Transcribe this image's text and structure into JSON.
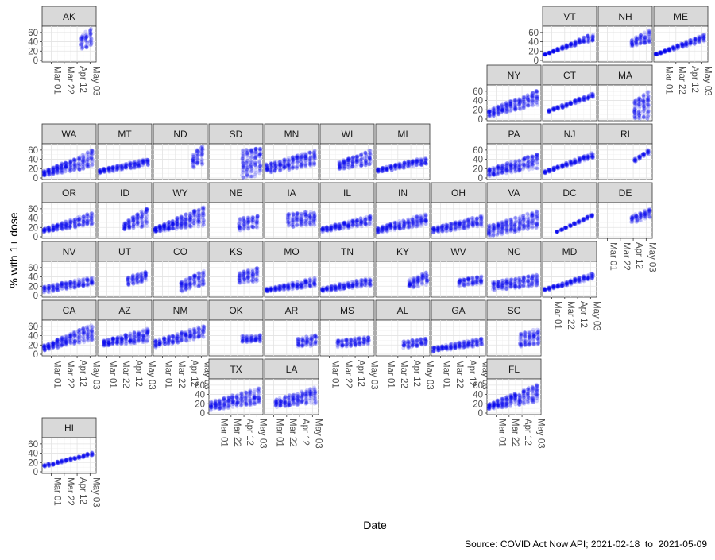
{
  "chart_data": {
    "type": "scatter",
    "layout": "geofacet-us-states",
    "xlabel": "Date",
    "ylabel": "% with 1+ dose",
    "caption": "Source: COVID Act Now API; 2021-02-18  to  2021-05-09",
    "x_range": [
      "2021-02-18",
      "2021-05-09"
    ],
    "y_range": [
      0,
      70
    ],
    "x_tick_labels": [
      "Mar 01",
      "Mar 22",
      "Apr 12",
      "May 03"
    ],
    "y_tick_labels": [
      "0",
      "20",
      "40",
      "60"
    ],
    "point_color": "#0000ee",
    "panel_background": "#ffffff",
    "strip_background": "#d9d9d9",
    "grid": true,
    "series": [
      {
        "state": "AK",
        "start": "2021-04-20",
        "low": [
          22,
          30
        ],
        "high": [
          55,
          68
        ]
      },
      {
        "state": "VT",
        "start": "2021-02-18",
        "low": [
          12,
          42
        ],
        "high": [
          13,
          58
        ]
      },
      {
        "state": "NH",
        "start": "2021-04-10",
        "low": [
          28,
          38
        ],
        "high": [
          45,
          65
        ]
      },
      {
        "state": "ME",
        "start": "2021-02-18",
        "low": [
          12,
          40
        ],
        "high": [
          14,
          56
        ]
      },
      {
        "state": "NY",
        "start": "2021-02-18",
        "low": [
          4,
          30
        ],
        "high": [
          20,
          62
        ]
      },
      {
        "state": "CT",
        "start": "2021-02-25",
        "low": [
          15,
          45
        ],
        "high": [
          20,
          55
        ]
      },
      {
        "state": "MA",
        "start": "2021-04-15",
        "low": [
          0,
          0
        ],
        "high": [
          40,
          60
        ]
      },
      {
        "state": "WA",
        "start": "2021-02-18",
        "low": [
          4,
          22
        ],
        "high": [
          15,
          60
        ]
      },
      {
        "state": "MT",
        "start": "2021-02-18",
        "low": [
          10,
          25
        ],
        "high": [
          18,
          42
        ]
      },
      {
        "state": "ND",
        "start": "2021-04-20",
        "low": [
          22,
          28
        ],
        "high": [
          55,
          68
        ]
      },
      {
        "state": "SD",
        "start": "2021-04-10",
        "low": [
          0,
          2
        ],
        "high": [
          60,
          65
        ]
      },
      {
        "state": "MN",
        "start": "2021-02-18",
        "low": [
          10,
          25
        ],
        "high": [
          30,
          60
        ]
      },
      {
        "state": "WI",
        "start": "2021-03-18",
        "low": [
          18,
          28
        ],
        "high": [
          35,
          60
        ]
      },
      {
        "state": "MI",
        "start": "2021-02-18",
        "low": [
          12,
          28
        ],
        "high": [
          20,
          45
        ]
      },
      {
        "state": "PA",
        "start": "2021-02-18",
        "low": [
          4,
          20
        ],
        "high": [
          20,
          52
        ]
      },
      {
        "state": "NJ",
        "start": "2021-02-18",
        "low": [
          10,
          42
        ],
        "high": [
          15,
          55
        ]
      },
      {
        "state": "RI",
        "start": "2021-04-15",
        "low": [
          35,
          50
        ],
        "high": [
          42,
          60
        ]
      },
      {
        "state": "OR",
        "start": "2021-02-18",
        "low": [
          10,
          25
        ],
        "high": [
          18,
          52
        ]
      },
      {
        "state": "ID",
        "start": "2021-03-30",
        "low": [
          15,
          22
        ],
        "high": [
          30,
          62
        ]
      },
      {
        "state": "WY",
        "start": "2021-02-18",
        "low": [
          10,
          22
        ],
        "high": [
          20,
          65
        ]
      },
      {
        "state": "NE",
        "start": "2021-04-05",
        "low": [
          12,
          18
        ],
        "high": [
          40,
          45
        ]
      },
      {
        "state": "IA",
        "start": "2021-03-25",
        "low": [
          20,
          25
        ],
        "high": [
          50,
          55
        ]
      },
      {
        "state": "IL",
        "start": "2021-02-18",
        "low": [
          10,
          25
        ],
        "high": [
          20,
          45
        ]
      },
      {
        "state": "IN",
        "start": "2021-02-18",
        "low": [
          8,
          25
        ],
        "high": [
          20,
          50
        ]
      },
      {
        "state": "OH",
        "start": "2021-02-18",
        "low": [
          8,
          22
        ],
        "high": [
          20,
          45
        ]
      },
      {
        "state": "VA",
        "start": "2021-02-18",
        "low": [
          0,
          18
        ],
        "high": [
          25,
          55
        ]
      },
      {
        "state": "DC",
        "start": "2021-03-10",
        "low": [
          10,
          42
        ],
        "high": [
          12,
          48
        ]
      },
      {
        "state": "DE",
        "start": "2021-04-10",
        "low": [
          28,
          40
        ],
        "high": [
          45,
          60
        ]
      },
      {
        "state": "NV",
        "start": "2021-02-18",
        "low": [
          5,
          22
        ],
        "high": [
          20,
          40
        ]
      },
      {
        "state": "UT",
        "start": "2021-04-05",
        "low": [
          22,
          30
        ],
        "high": [
          40,
          55
        ]
      },
      {
        "state": "CO",
        "start": "2021-04-01",
        "low": [
          8,
          20
        ],
        "high": [
          30,
          55
        ]
      },
      {
        "state": "KS",
        "start": "2021-04-05",
        "low": [
          25,
          30
        ],
        "high": [
          50,
          60
        ]
      },
      {
        "state": "MO",
        "start": "2021-02-18",
        "low": [
          8,
          18
        ],
        "high": [
          15,
          38
        ]
      },
      {
        "state": "TN",
        "start": "2021-02-18",
        "low": [
          8,
          20
        ],
        "high": [
          18,
          38
        ]
      },
      {
        "state": "KY",
        "start": "2021-04-10",
        "low": [
          15,
          22
        ],
        "high": [
          35,
          50
        ]
      },
      {
        "state": "WV",
        "start": "2021-04-01",
        "low": [
          20,
          25
        ],
        "high": [
          35,
          42
        ]
      },
      {
        "state": "NC",
        "start": "2021-02-25",
        "low": [
          10,
          20
        ],
        "high": [
          30,
          45
        ]
      },
      {
        "state": "MD",
        "start": "2021-02-18",
        "low": [
          10,
          35
        ],
        "high": [
          15,
          48
        ]
      },
      {
        "state": "CA",
        "start": "2021-02-18",
        "low": [
          8,
          30
        ],
        "high": [
          20,
          65
        ]
      },
      {
        "state": "AZ",
        "start": "2021-02-25",
        "low": [
          18,
          25
        ],
        "high": [
          30,
          55
        ]
      },
      {
        "state": "NM",
        "start": "2021-02-18",
        "low": [
          15,
          35
        ],
        "high": [
          30,
          62
        ]
      },
      {
        "state": "OK",
        "start": "2021-04-10",
        "low": [
          25,
          25
        ],
        "high": [
          40,
          42
        ]
      },
      {
        "state": "AR",
        "start": "2021-04-10",
        "low": [
          15,
          18
        ],
        "high": [
          35,
          42
        ]
      },
      {
        "state": "MS",
        "start": "2021-03-15",
        "low": [
          15,
          20
        ],
        "high": [
          30,
          38
        ]
      },
      {
        "state": "AL",
        "start": "2021-04-01",
        "low": [
          12,
          20
        ],
        "high": [
          28,
          35
        ]
      },
      {
        "state": "GA",
        "start": "2021-02-18",
        "low": [
          5,
          18
        ],
        "high": [
          15,
          35
        ]
      },
      {
        "state": "SC",
        "start": "2021-04-10",
        "low": [
          15,
          22
        ],
        "high": [
          45,
          55
        ]
      },
      {
        "state": "TX",
        "start": "2021-02-18",
        "low": [
          5,
          20
        ],
        "high": [
          25,
          55
        ]
      },
      {
        "state": "LA",
        "start": "2021-03-05",
        "low": [
          12,
          20
        ],
        "high": [
          30,
          55
        ]
      },
      {
        "state": "FL",
        "start": "2021-02-18",
        "low": [
          8,
          22
        ],
        "high": [
          20,
          62
        ]
      },
      {
        "state": "HI",
        "start": "2021-02-18",
        "low": [
          10,
          35
        ],
        "high": [
          15,
          42
        ]
      }
    ]
  }
}
